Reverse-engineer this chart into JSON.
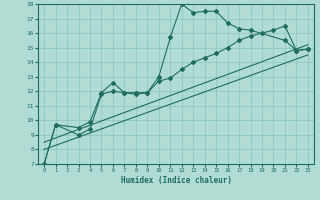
{
  "bg_color": "#b0dcd4",
  "grid_color": "#8cc4bc",
  "line_color": "#1e6e5c",
  "xlabel": "Humidex (Indice chaleur)",
  "xlim": [
    -0.5,
    23.5
  ],
  "ylim": [
    7,
    18
  ],
  "yticks": [
    7,
    8,
    9,
    10,
    11,
    12,
    13,
    14,
    15,
    16,
    17,
    18
  ],
  "xticks": [
    0,
    1,
    2,
    3,
    4,
    5,
    6,
    7,
    8,
    9,
    10,
    11,
    12,
    13,
    14,
    15,
    16,
    17,
    18,
    19,
    20,
    21,
    22,
    23
  ],
  "series": [
    {
      "x": [
        0,
        1,
        3,
        4,
        5,
        6,
        7,
        8,
        9,
        10,
        11,
        12,
        13,
        14,
        15,
        16,
        17,
        18,
        21,
        22,
        23
      ],
      "y": [
        7.0,
        9.7,
        9.5,
        9.9,
        11.9,
        12.6,
        11.9,
        11.8,
        11.9,
        13.0,
        15.7,
        18.0,
        17.4,
        17.5,
        17.5,
        16.7,
        16.3,
        16.2,
        15.5,
        14.8,
        14.9
      ]
    },
    {
      "x": [
        0,
        1,
        3,
        4,
        5,
        6,
        7,
        8,
        9,
        10,
        11,
        12,
        13,
        14,
        15,
        16,
        17,
        18,
        19,
        20,
        21,
        22,
        23
      ],
      "y": [
        7.0,
        9.7,
        9.0,
        9.4,
        11.8,
        12.0,
        11.9,
        11.9,
        11.9,
        12.7,
        12.9,
        13.5,
        14.0,
        14.3,
        14.6,
        15.0,
        15.5,
        15.8,
        16.0,
        16.2,
        16.5,
        14.8,
        14.9
      ]
    },
    {
      "x": [
        0,
        23
      ],
      "y": [
        8.5,
        15.2
      ]
    },
    {
      "x": [
        0,
        23
      ],
      "y": [
        8.0,
        14.5
      ]
    }
  ]
}
